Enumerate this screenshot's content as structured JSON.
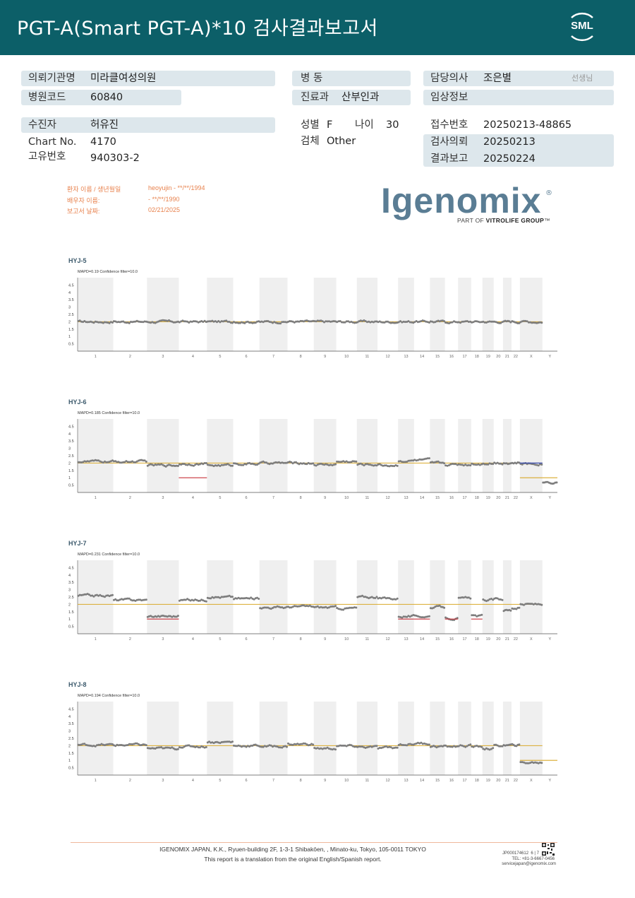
{
  "header": {
    "title": "PGT-A(Smart  PGT-A)*10 검사결과보고서",
    "logo_text": "SML"
  },
  "form": {
    "institution_label": "의뢰기관명",
    "institution_value": "미라클여성의원",
    "hospital_code_label": "병원코드",
    "hospital_code_value": "60840",
    "ward_label": "병  동",
    "ward_value": "",
    "department_label": "진료과",
    "department_value": "산부인과",
    "doctor_label": "담당의사",
    "doctor_value": "조은별",
    "doctor_suffix": "선생님",
    "clinical_label": "임상정보",
    "clinical_value": "",
    "patient_label": "수진자",
    "patient_value": "허유진",
    "chart_no_label": "Chart No.",
    "chart_no_value": "4170",
    "id_label": "고유번호",
    "id_value": "940303-2",
    "sex_label": "성별",
    "sex_value": "F",
    "age_label": "나이",
    "age_value": "30",
    "specimen_label": "검체",
    "specimen_value": "Other",
    "receipt_label": "접수번호",
    "receipt_value": "20250213-48865",
    "request_label": "검사의뢰",
    "request_value": "20250213",
    "report_label": "결과보고",
    "report_value": "20250224"
  },
  "report_meta": {
    "patient_label": "환자 이름 / 생년월일",
    "patient_value": "heoyujin - **/**/1994",
    "partner_label": "배우자 이름:",
    "partner_value": " - **/**/1990",
    "date_label": "보고서 날짜:",
    "date_value": "02/21/2025"
  },
  "brand": {
    "name": "Igenomix",
    "reg": "®",
    "tagline_prefix": "PART OF ",
    "tagline_bold": "VITROLIFE GROUP",
    "tagline_tm": "™"
  },
  "colors": {
    "header_bg": "#0c5f68",
    "field_bg": "#dde7ec",
    "baseline": "#d9a92a",
    "points": "#7d7d7d",
    "gain": "#3a4fb8",
    "loss": "#c8303a",
    "band": "#efefef"
  },
  "chart_data": [
    {
      "type": "scatter",
      "title": "HYJ-5",
      "subtitle": "MAPD=0.19 Confidence filter=10.0",
      "y_ticks": [
        "4.5",
        "4",
        "3.5",
        "3",
        "2.5",
        "2",
        "1.5",
        "1",
        "0.5"
      ],
      "ylim": [
        0,
        5
      ],
      "categories": [
        "1",
        "2",
        "3",
        "4",
        "5",
        "6",
        "7",
        "8",
        "9",
        "10",
        "11",
        "12",
        "13",
        "14",
        "15",
        "16",
        "17",
        "18",
        "19",
        "20",
        "21",
        "22",
        "X",
        "Y"
      ],
      "baseline": 2,
      "copy_number": [
        2,
        2,
        2,
        2,
        2,
        2,
        2,
        2,
        2,
        2,
        2,
        2,
        2,
        2,
        2,
        2,
        2,
        2,
        2,
        2,
        2,
        2,
        2,
        null
      ],
      "segments": []
    },
    {
      "type": "scatter",
      "title": "HYJ-6",
      "subtitle": "MAPD=0.185 Confidence filter=10.0",
      "y_ticks": [
        "4.5",
        "4",
        "3.5",
        "3",
        "2.5",
        "2",
        "1.5",
        "1",
        "0.5"
      ],
      "ylim": [
        0,
        5
      ],
      "categories": [
        "1",
        "2",
        "3",
        "4",
        "5",
        "6",
        "7",
        "8",
        "9",
        "10",
        "11",
        "12",
        "13",
        "14",
        "15",
        "16",
        "17",
        "18",
        "19",
        "20",
        "21",
        "22",
        "X",
        "Y"
      ],
      "baseline": 2,
      "copy_number": [
        2.1,
        2.1,
        1.85,
        1.95,
        1.85,
        1.95,
        2,
        2,
        1.9,
        2.1,
        1.9,
        1.85,
        2.15,
        2.2,
        2,
        1.9,
        1.9,
        1.95,
        2,
        2,
        2,
        2,
        1.95,
        0.7
      ],
      "segments": [
        {
          "chrom": "4",
          "value": 1,
          "kind": "loss"
        },
        {
          "chrom": "X",
          "value": 2,
          "kind": "gain"
        },
        {
          "chrom": "X-Y",
          "value": 1,
          "kind": "baseline"
        }
      ]
    },
    {
      "type": "scatter",
      "title": "HYJ-7",
      "subtitle": "MAPD=0.231 Confidence filter=10.0",
      "y_ticks": [
        "4.5",
        "4",
        "3.5",
        "3",
        "2.5",
        "2",
        "1.5",
        "1",
        "0.5"
      ],
      "ylim": [
        0,
        5
      ],
      "categories": [
        "1",
        "2",
        "3",
        "4",
        "5",
        "6",
        "7",
        "8",
        "9",
        "10",
        "11",
        "12",
        "13",
        "14",
        "15",
        "16",
        "17",
        "18",
        "19",
        "20",
        "21",
        "22",
        "X",
        "Y"
      ],
      "baseline": 2,
      "copy_number": [
        2.6,
        2.3,
        1.2,
        2.3,
        2.5,
        2.4,
        1.8,
        1.85,
        1.8,
        1.75,
        2.5,
        2.4,
        1.2,
        1.2,
        1.8,
        1.05,
        2.4,
        1.2,
        2.3,
        2.35,
        1.6,
        1.75,
        2.0,
        null
      ],
      "segments": [
        {
          "chrom": "3",
          "value": 1,
          "kind": "loss"
        },
        {
          "chrom": "13",
          "value": 1,
          "kind": "loss"
        },
        {
          "chrom": "14",
          "value": 1,
          "kind": "loss"
        },
        {
          "chrom": "16",
          "value": 1,
          "kind": "loss"
        },
        {
          "chrom": "18",
          "value": 1,
          "kind": "loss"
        }
      ]
    },
    {
      "type": "scatter",
      "title": "HYJ-8",
      "subtitle": "MAPD=0.194 Confidence filter=10.0",
      "y_ticks": [
        "4.5",
        "4",
        "3.5",
        "3",
        "2.5",
        "2",
        "1.5",
        "1",
        "0.5"
      ],
      "ylim": [
        0,
        5
      ],
      "categories": [
        "1",
        "2",
        "3",
        "4",
        "5",
        "6",
        "7",
        "8",
        "9",
        "10",
        "11",
        "12",
        "13",
        "14",
        "15",
        "16",
        "17",
        "18",
        "19",
        "20",
        "21",
        "22",
        "X",
        "Y"
      ],
      "baseline": 2,
      "copy_number": [
        2.05,
        2.05,
        1.8,
        1.95,
        2.25,
        2,
        1.95,
        2.1,
        1.8,
        1.95,
        1.9,
        1.85,
        2.1,
        2.15,
        1.95,
        1.95,
        2,
        1.95,
        1.8,
        2,
        2,
        2.05,
        0.85,
        null
      ],
      "segments": [
        {
          "chrom": "X-Y",
          "value": 1,
          "kind": "baseline"
        }
      ]
    }
  ],
  "footer": {
    "address": "IGENOMIX JAPAN, K.K., Ryuen-building 2F, 1-3-1 Shibakōen, , Minato-ku, Tokyo, 105-0011 TOKYO",
    "note": "This report is a translation from the original English/Spanish report.",
    "code": "JP000174612",
    "page": "6 | 7",
    "phone": "TEL: +81-3-6667-0456",
    "email": "servicejapan@igenomix.com"
  }
}
